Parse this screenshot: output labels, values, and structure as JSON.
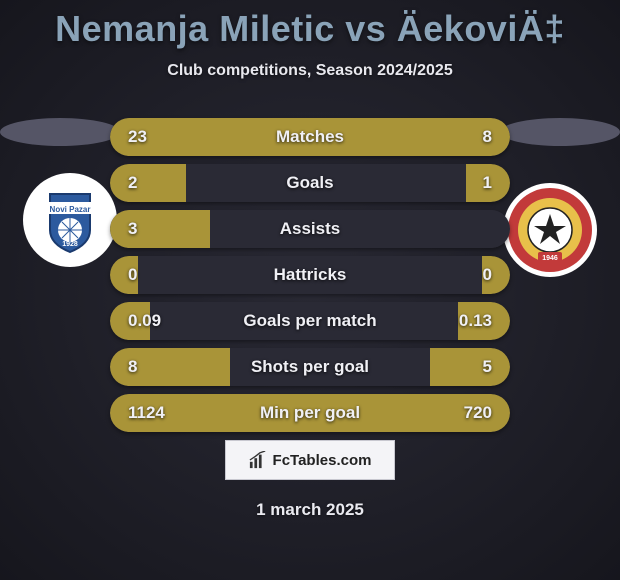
{
  "title": "Nemanja Miletic vs ÄekoviÄ‡",
  "subtitle": "Club competitions, Season 2024/2025",
  "date": "1 march 2025",
  "watermark": "FcTables.com",
  "colors": {
    "bar_left": "#a99438",
    "bar_right": "#a99438",
    "bar_bg": "#2a2a35"
  },
  "crest_left": {
    "bg": "#ffffff",
    "shield_fill": "#2c5a9e",
    "shield_stroke": "#1a3a6e",
    "banner_text": "Novi Pazar",
    "year": "1928"
  },
  "crest_right": {
    "bg": "#ffffff",
    "ring_outer": "#c23a3a",
    "ring_inner": "#e8c04a",
    "ball": "#ffffff",
    "year": "1946"
  },
  "stats": [
    {
      "label": "Matches",
      "left_val": "23",
      "right_val": "8",
      "left_pct": 74,
      "right_pct": 26
    },
    {
      "label": "Goals",
      "left_val": "2",
      "right_val": "1",
      "left_pct": 19,
      "right_pct": 11
    },
    {
      "label": "Assists",
      "left_val": "3",
      "right_val": "",
      "left_pct": 25,
      "right_pct": 0
    },
    {
      "label": "Hattricks",
      "left_val": "0",
      "right_val": "0",
      "left_pct": 7,
      "right_pct": 7
    },
    {
      "label": "Goals per match",
      "left_val": "0.09",
      "right_val": "0.13",
      "left_pct": 10,
      "right_pct": 13
    },
    {
      "label": "Shots per goal",
      "left_val": "8",
      "right_val": "5",
      "left_pct": 30,
      "right_pct": 20
    },
    {
      "label": "Min per goal",
      "left_val": "1124",
      "right_val": "720",
      "left_pct": 60,
      "right_pct": 40
    }
  ]
}
